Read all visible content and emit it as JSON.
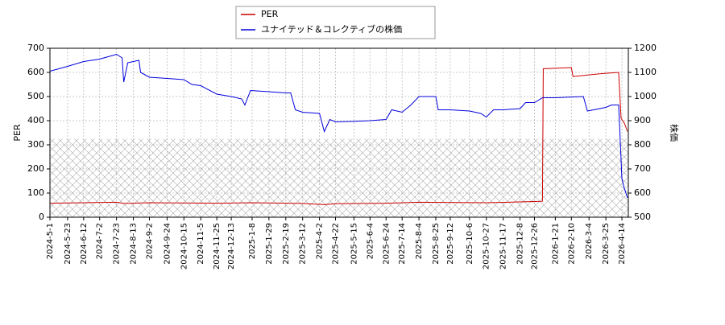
{
  "chart_data": {
    "type": "line",
    "ylabel": "PER",
    "y2label": "株価",
    "xlim": [
      "2024-5-1",
      "2026-4-22"
    ],
    "xticks": [
      "2024-5-1",
      "2024-5-23",
      "2024-6-12",
      "2024-7-2",
      "2024-7-23",
      "2024-8-13",
      "2024-9-2",
      "2024-9-24",
      "2024-10-15",
      "2024-11-5",
      "2024-11-25",
      "2024-12-13",
      "2025-1-8",
      "2025-1-29",
      "2025-2-19",
      "2025-3-12",
      "2025-4-2",
      "2025-4-22",
      "2025-5-15",
      "2025-6-4",
      "2025-6-24",
      "2025-7-14",
      "2025-8-4",
      "2025-8-25",
      "2025-9-12",
      "2025-10-6",
      "2025-10-27",
      "2025-11-17",
      "2025-12-8",
      "2025-12-26",
      "2026-1-21",
      "2026-2-10",
      "2026-3-4",
      "2026-3-25",
      "2026-4-14"
    ],
    "ylim": [
      0,
      700
    ],
    "yticks": [
      0,
      100,
      200,
      300,
      400,
      500,
      600,
      700
    ],
    "y2lim": [
      500,
      1200
    ],
    "y2ticks": [
      500,
      600,
      700,
      800,
      900,
      1000,
      1100,
      1200
    ],
    "grid": true,
    "shaded_range": [
      0,
      325
    ],
    "series": [
      {
        "name": "PER",
        "color": "#cc0000",
        "x": [
          "2024-5-1",
          "2024-7-23",
          "2024-8-1",
          "2024-9-2",
          "2024-11-25",
          "2025-1-8",
          "2025-3-12",
          "2025-4-8",
          "2025-4-22",
          "2025-6-24",
          "2025-8-4",
          "2025-10-27",
          "2025-12-26",
          "2026-1-5",
          "2026-1-6",
          "2026-2-10",
          "2026-2-12",
          "2026-3-20",
          "2026-4-10",
          "2026-4-13",
          "2026-4-17",
          "2026-4-21"
        ],
        "values": [
          58,
          62,
          57,
          60,
          58,
          60,
          57,
          52,
          56,
          58,
          62,
          60,
          65,
          66,
          615,
          620,
          583,
          595,
          600,
          410,
          390,
          355
        ]
      },
      {
        "name": "ユナイテッド＆コレクティブの株価",
        "color": "#0000dd",
        "axis": "y2",
        "x": [
          "2024-5-1",
          "2024-5-23",
          "2024-6-12",
          "2024-7-2",
          "2024-7-23",
          "2024-7-30",
          "2024-8-1",
          "2024-8-6",
          "2024-8-13",
          "2024-8-20",
          "2024-8-22",
          "2024-9-2",
          "2024-9-24",
          "2024-10-15",
          "2024-10-25",
          "2024-11-5",
          "2024-11-25",
          "2024-12-13",
          "2024-12-26",
          "2024-12-30",
          "2025-1-6",
          "2025-1-29",
          "2025-2-19",
          "2025-2-25",
          "2025-3-3",
          "2025-3-12",
          "2025-4-2",
          "2025-4-8",
          "2025-4-15",
          "2025-4-22",
          "2025-5-15",
          "2025-6-4",
          "2025-6-24",
          "2025-7-1",
          "2025-7-14",
          "2025-7-25",
          "2025-8-4",
          "2025-8-25",
          "2025-8-28",
          "2025-9-12",
          "2025-10-6",
          "2025-10-20",
          "2025-10-27",
          "2025-11-5",
          "2025-11-17",
          "2025-12-8",
          "2025-12-15",
          "2025-12-26",
          "2026-1-5",
          "2026-1-21",
          "2026-2-10",
          "2026-2-25",
          "2026-3-2",
          "2026-3-25",
          "2026-4-1",
          "2026-4-10",
          "2026-4-14",
          "2026-4-17",
          "2026-4-21"
        ],
        "values": [
          1105,
          1125,
          1145,
          1155,
          1175,
          1160,
          1060,
          1140,
          1145,
          1150,
          1100,
          1080,
          1075,
          1070,
          1050,
          1045,
          1010,
          1000,
          990,
          965,
          1025,
          1020,
          1015,
          1015,
          945,
          935,
          930,
          855,
          905,
          895,
          897,
          900,
          905,
          945,
          935,
          965,
          1000,
          1000,
          945,
          945,
          940,
          930,
          915,
          945,
          945,
          950,
          975,
          975,
          995,
          995,
          998,
          1000,
          940,
          955,
          965,
          965,
          660,
          620,
          580
        ]
      }
    ],
    "legend": "upper-center"
  }
}
